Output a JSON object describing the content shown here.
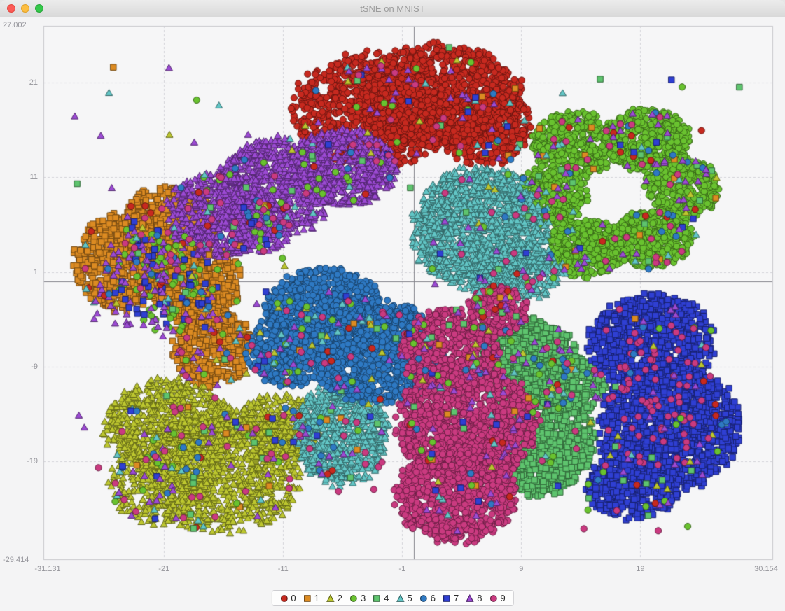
{
  "window": {
    "title": "tSNE on MNIST"
  },
  "traffic_lights": {
    "close_color": "#fc5b57",
    "minimize_color": "#fdbe41",
    "zoom_color": "#34c84a"
  },
  "chart_data": {
    "type": "scatter",
    "title": "tSNE on MNIST",
    "xlim": [
      -31.131,
      30.154
    ],
    "ylim": [
      -29.414,
      27.002
    ],
    "x_ticks": [
      {
        "value": -21,
        "label": "-21"
      },
      {
        "value": -11,
        "label": "-11"
      },
      {
        "value": -1,
        "label": "-1"
      },
      {
        "value": 9,
        "label": "9"
      },
      {
        "value": 19,
        "label": "19"
      }
    ],
    "y_ticks": [
      {
        "value": 21,
        "label": "21"
      },
      {
        "value": 11,
        "label": "11"
      },
      {
        "value": 1,
        "label": "1"
      },
      {
        "value": -9,
        "label": "-9"
      },
      {
        "value": -19,
        "label": "-19"
      }
    ],
    "x_edge_labels": {
      "min": "-31.131",
      "max": "30.154"
    },
    "y_edge_labels": {
      "min": "-29.414",
      "max": "27.002"
    },
    "grid": "dashed",
    "grid_color": "#d3d3d7",
    "plot_background": "#f6f6f7",
    "plot_border_color": "#c8c8cc",
    "origin_crosshair": true,
    "crosshair_color": "#83838a",
    "legend_position": "bottom-center",
    "series": [
      {
        "name": "0",
        "marker": "circle",
        "color": "#c7291f",
        "clusters": [
          {
            "cx": -3.5,
            "cy": 18.0,
            "rx": 6.5,
            "ry": 6.0,
            "n": 1000
          },
          {
            "cx": 2.0,
            "cy": 19.5,
            "rx": 7.0,
            "ry": 5.5,
            "n": 1100
          },
          {
            "cx": 6.0,
            "cy": 16.5,
            "rx": 3.8,
            "ry": 4.2,
            "n": 400
          }
        ],
        "stray_in_clusters": 60,
        "scatter_wild": 8
      },
      {
        "name": "1",
        "marker": "square",
        "color": "#dc8b22",
        "clusters": [
          {
            "cx": -24.5,
            "cy": 2.0,
            "rx": 4.0,
            "ry": 5.0,
            "n": 600
          },
          {
            "cx": -20.5,
            "cy": 6.0,
            "rx": 4.0,
            "ry": 4.0,
            "n": 500
          },
          {
            "cx": -18.5,
            "cy": 0.0,
            "rx": 3.8,
            "ry": 4.5,
            "n": 500
          },
          {
            "cx": -17.0,
            "cy": -7.0,
            "rx": 3.2,
            "ry": 4.2,
            "n": 400
          }
        ],
        "stray_in_clusters": 40,
        "scatter_wild": 6
      },
      {
        "name": "2",
        "marker": "triangle",
        "color": "#bdc72f",
        "clusters": [
          {
            "cx": -20.5,
            "cy": -15.5,
            "rx": 5.5,
            "ry": 5.0,
            "n": 800
          },
          {
            "cx": -16.0,
            "cy": -20.0,
            "rx": 6.5,
            "ry": 6.5,
            "n": 1000
          },
          {
            "cx": -11.5,
            "cy": -15.5,
            "rx": 3.5,
            "ry": 3.5,
            "n": 300
          },
          {
            "cx": -21.5,
            "cy": -21.5,
            "rx": 4.0,
            "ry": 4.0,
            "n": 300
          }
        ],
        "stray_in_clusters": 50,
        "scatter_wild": 8
      },
      {
        "name": "3",
        "marker": "circle",
        "color": "#69c22f",
        "clusters": [
          {
            "cx": 13.5,
            "cy": 14.5,
            "rx": 3.5,
            "ry": 3.4,
            "n": 450
          },
          {
            "cx": 19.5,
            "cy": 15.0,
            "rx": 3.6,
            "ry": 3.2,
            "n": 450
          },
          {
            "cx": 22.5,
            "cy": 10.0,
            "rx": 3.0,
            "ry": 3.4,
            "n": 400
          },
          {
            "cx": 20.0,
            "cy": 4.5,
            "rx": 3.4,
            "ry": 3.0,
            "n": 450
          },
          {
            "cx": 14.5,
            "cy": 3.5,
            "rx": 3.2,
            "ry": 3.0,
            "n": 400
          },
          {
            "cx": 11.5,
            "cy": 9.0,
            "rx": 3.0,
            "ry": 3.2,
            "n": 350
          },
          {
            "cx": -21.0,
            "cy": 0.0,
            "rx": 4.0,
            "ry": 5.0,
            "n": 60
          }
        ],
        "stray_in_clusters": 120,
        "scatter_wild": 10
      },
      {
        "name": "4",
        "marker": "square",
        "color": "#5ec46e",
        "clusters": [
          {
            "cx": 9.5,
            "cy": -8.5,
            "rx": 4.2,
            "ry": 4.5,
            "n": 800
          },
          {
            "cx": 10.5,
            "cy": -16.5,
            "rx": 4.5,
            "ry": 6.0,
            "n": 1100
          },
          {
            "cx": 13.0,
            "cy": -11.0,
            "rx": 3.0,
            "ry": 3.0,
            "n": 300
          }
        ],
        "stray_in_clusters": 70,
        "scatter_wild": 6
      },
      {
        "name": "5",
        "marker": "triangle",
        "color": "#62c6c6",
        "clusters": [
          {
            "cx": 5.5,
            "cy": 5.5,
            "rx": 5.5,
            "ry": 6.5,
            "n": 1500
          },
          {
            "cx": 9.0,
            "cy": 1.0,
            "rx": 3.5,
            "ry": 3.0,
            "n": 300
          },
          {
            "cx": -6.0,
            "cy": -16.0,
            "rx": 3.8,
            "ry": 5.5,
            "n": 800
          }
        ],
        "stray_in_clusters": 80,
        "scatter_wild": 10
      },
      {
        "name": "6",
        "marker": "circle",
        "color": "#2e79c3",
        "clusters": [
          {
            "cx": -7.5,
            "cy": -3.5,
            "rx": 5.2,
            "ry": 4.8,
            "n": 1000
          },
          {
            "cx": -3.0,
            "cy": -7.5,
            "rx": 5.5,
            "ry": 5.2,
            "n": 1100
          },
          {
            "cx": -10.5,
            "cy": -7.5,
            "rx": 3.5,
            "ry": 3.5,
            "n": 400
          }
        ],
        "stray_in_clusters": 90,
        "scatter_wild": 8
      },
      {
        "name": "7",
        "marker": "square",
        "color": "#2f3fd3",
        "clusters": [
          {
            "cx": 20.0,
            "cy": -6.5,
            "rx": 5.2,
            "ry": 5.0,
            "n": 900
          },
          {
            "cx": 21.5,
            "cy": -15.5,
            "rx": 5.8,
            "ry": 6.5,
            "n": 1300
          },
          {
            "cx": 18.5,
            "cy": -21.5,
            "rx": 4.0,
            "ry": 3.5,
            "n": 400
          },
          {
            "cx": -21.0,
            "cy": 0.5,
            "rx": 4.5,
            "ry": 5.0,
            "n": 50
          }
        ],
        "stray_in_clusters": 50,
        "scatter_wild": 6
      },
      {
        "name": "8",
        "marker": "triangle",
        "color": "#9c4ad4",
        "clusters": [
          {
            "cx": -16.5,
            "cy": 7.0,
            "rx": 4.2,
            "ry": 4.5,
            "n": 600
          },
          {
            "cx": -11.5,
            "cy": 10.0,
            "rx": 5.0,
            "ry": 5.0,
            "n": 800
          },
          {
            "cx": -6.0,
            "cy": 12.0,
            "rx": 4.5,
            "ry": 4.0,
            "n": 600
          },
          {
            "cx": -13.0,
            "cy": 6.0,
            "rx": 3.0,
            "ry": 3.0,
            "n": 200
          },
          {
            "cx": -22.0,
            "cy": -1.0,
            "rx": 5.0,
            "ry": 5.5,
            "n": 60
          }
        ],
        "stray_in_clusters": 220,
        "scatter_wild": 40
      },
      {
        "name": "9",
        "marker": "circle",
        "color": "#ca3a80",
        "clusters": [
          {
            "cx": 3.0,
            "cy": -7.5,
            "rx": 4.0,
            "ry": 4.5,
            "n": 600
          },
          {
            "cx": 4.5,
            "cy": -15.0,
            "rx": 5.8,
            "ry": 6.0,
            "n": 1200
          },
          {
            "cx": 3.5,
            "cy": -22.5,
            "rx": 5.0,
            "ry": 5.0,
            "n": 800
          },
          {
            "cx": 7.0,
            "cy": -3.0,
            "rx": 2.5,
            "ry": 2.5,
            "n": 200
          },
          {
            "cx": 20.5,
            "cy": -12.0,
            "rx": 4.5,
            "ry": 8.0,
            "n": 70
          }
        ],
        "stray_in_clusters": 180,
        "scatter_wild": 12
      }
    ]
  }
}
